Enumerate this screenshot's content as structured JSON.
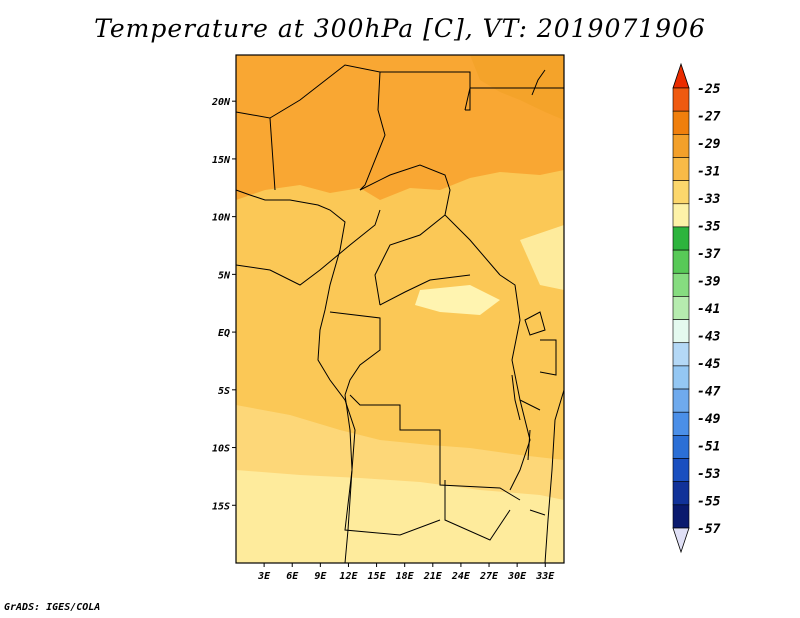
{
  "title": "Temperature at 300hPa [C], VT: 2019071906",
  "credit": "GrADS: IGES/COLA",
  "map": {
    "lon_range": [
      0,
      35
    ],
    "lat_range": [
      -20,
      24
    ],
    "lon_ticks": [
      "3E",
      "6E",
      "9E",
      "12E",
      "15E",
      "18E",
      "21E",
      "24E",
      "27E",
      "30E",
      "33E"
    ],
    "lat_ticks": [
      "20N",
      "15N",
      "10N",
      "5N",
      "EQ",
      "5S",
      "10S",
      "15S"
    ]
  },
  "colorbar": {
    "labels": [
      "-25",
      "-27",
      "-29",
      "-31",
      "-33",
      "-35",
      "-37",
      "-39",
      "-41",
      "-43",
      "-45",
      "-47",
      "-49",
      "-51",
      "-53",
      "-55",
      "-57"
    ],
    "colors": [
      "#ef5a10",
      "#f07f0c",
      "#f3a02a",
      "#f8ba47",
      "#fcd76c",
      "#fdf2a8",
      "#2db43d",
      "#58c957",
      "#86dc80",
      "#b6ecaf",
      "#e4f9ef",
      "#b4d8f6",
      "#94c7f3",
      "#6faaed",
      "#4b8fe8",
      "#2b6fd6",
      "#1a4fc0",
      "#113299",
      "#0a1a6e"
    ],
    "top_color": "#ea2c00",
    "bottom_color": "#e0e0f6"
  },
  "field_colors": {
    "warm": "#f9a733",
    "orange": "#f4a32a",
    "mid": "#fbc856",
    "yellow": "#fdd778",
    "pale": "#feeb9c",
    "paler": "#fff4b0"
  }
}
